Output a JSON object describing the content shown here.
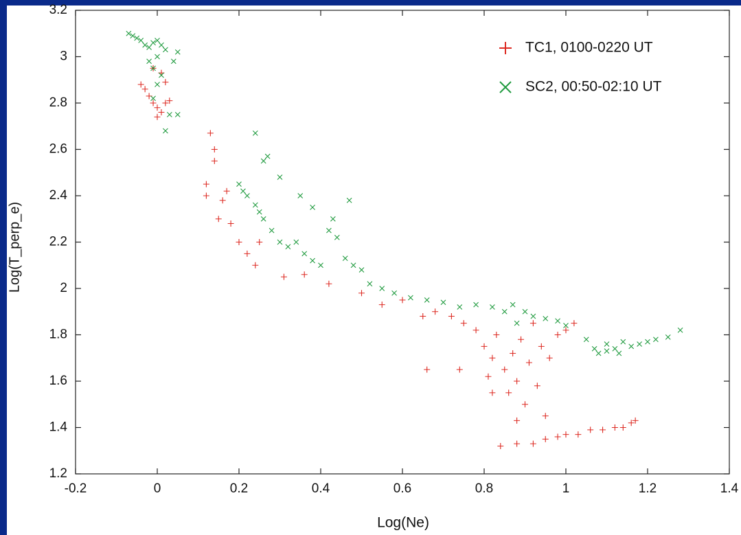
{
  "chart_data": {
    "type": "scatter",
    "xlabel": "Log(Ne)",
    "ylabel": "Log(T_perp_e)",
    "xlim": [
      -0.2,
      1.4
    ],
    "xticks": [
      -0.2,
      0,
      0.2,
      0.4,
      0.6,
      0.8,
      1,
      1.2,
      1.4
    ],
    "ylim": [
      1.2,
      3.2
    ],
    "yticks": [
      1.2,
      1.4,
      1.6,
      1.8,
      2,
      2.2,
      2.4,
      2.6,
      2.8,
      3,
      3.2
    ],
    "legend": "upper right",
    "series": [
      {
        "name": "TC1, 0100-0220 UT",
        "color": "#dd2a22",
        "marker": "plus",
        "x": [
          -0.04,
          -0.03,
          -0.02,
          -0.01,
          0,
          0.01,
          0,
          0.02,
          0.03,
          -0.01,
          0.01,
          0.02,
          0.12,
          0.13,
          0.14,
          0.14,
          0.12,
          0.16,
          0.15,
          0.17,
          0.18,
          0.2,
          0.22,
          0.24,
          0.25,
          0.31,
          0.36,
          0.42,
          0.5,
          0.55,
          0.6,
          0.65,
          0.68,
          0.72,
          0.75,
          0.78,
          0.8,
          0.81,
          0.82,
          0.83,
          0.85,
          0.86,
          0.87,
          0.88,
          0.89,
          0.9,
          0.91,
          0.92,
          0.93,
          0.94,
          0.95,
          0.96,
          0.98,
          1.0,
          1.02,
          0.84,
          0.88,
          0.92,
          0.95,
          0.98,
          1.0,
          1.03,
          1.06,
          1.09,
          1.12,
          1.14,
          1.16,
          1.17,
          0.66,
          0.74,
          0.82,
          0.88
        ],
        "y": [
          2.88,
          2.86,
          2.83,
          2.8,
          2.78,
          2.76,
          2.74,
          2.8,
          2.81,
          2.95,
          2.93,
          2.89,
          2.4,
          2.67,
          2.55,
          2.6,
          2.45,
          2.38,
          2.3,
          2.42,
          2.28,
          2.2,
          2.15,
          2.1,
          2.2,
          2.05,
          2.06,
          2.02,
          1.98,
          1.93,
          1.95,
          1.88,
          1.9,
          1.88,
          1.85,
          1.82,
          1.75,
          1.62,
          1.7,
          1.8,
          1.65,
          1.55,
          1.72,
          1.6,
          1.78,
          1.5,
          1.68,
          1.85,
          1.58,
          1.75,
          1.45,
          1.7,
          1.8,
          1.82,
          1.85,
          1.32,
          1.33,
          1.33,
          1.35,
          1.36,
          1.37,
          1.37,
          1.39,
          1.39,
          1.4,
          1.4,
          1.42,
          1.43,
          1.65,
          1.65,
          1.55,
          1.43
        ]
      },
      {
        "name": "SC2, 00:50-02:10 UT",
        "color": "#1f9a3e",
        "marker": "cross",
        "x": [
          -0.07,
          -0.06,
          -0.05,
          -0.04,
          -0.03,
          -0.02,
          -0.01,
          0,
          0.01,
          0.02,
          0,
          -0.02,
          -0.01,
          0.01,
          0.04,
          0.05,
          0,
          0.03,
          0.05,
          0.02,
          -0.01,
          0.2,
          0.21,
          0.22,
          0.24,
          0.25,
          0.26,
          0.24,
          0.26,
          0.27,
          0.3,
          0.28,
          0.3,
          0.32,
          0.34,
          0.36,
          0.38,
          0.4,
          0.42,
          0.44,
          0.46,
          0.48,
          0.5,
          0.47,
          0.52,
          0.55,
          0.58,
          0.62,
          0.66,
          0.7,
          0.74,
          0.78,
          0.82,
          0.85,
          0.87,
          0.9,
          0.92,
          0.95,
          0.98,
          1.0,
          0.88,
          1.05,
          1.07,
          1.08,
          1.1,
          1.12,
          1.14,
          1.16,
          1.18,
          1.2,
          1.22,
          1.25,
          1.28,
          1.1,
          1.13,
          0.35,
          0.38,
          0.43
        ],
        "y": [
          3.1,
          3.09,
          3.08,
          3.07,
          3.05,
          3.04,
          3.06,
          3.07,
          3.05,
          3.03,
          3.0,
          2.98,
          2.95,
          2.92,
          2.98,
          3.02,
          2.88,
          2.75,
          2.75,
          2.68,
          2.82,
          2.45,
          2.42,
          2.4,
          2.36,
          2.33,
          2.3,
          2.67,
          2.55,
          2.57,
          2.48,
          2.25,
          2.2,
          2.18,
          2.2,
          2.15,
          2.12,
          2.1,
          2.25,
          2.22,
          2.13,
          2.1,
          2.08,
          2.38,
          2.02,
          2.0,
          1.98,
          1.96,
          1.95,
          1.94,
          1.92,
          1.93,
          1.92,
          1.9,
          1.93,
          1.9,
          1.88,
          1.87,
          1.86,
          1.84,
          1.85,
          1.78,
          1.74,
          1.72,
          1.76,
          1.74,
          1.77,
          1.75,
          1.76,
          1.77,
          1.78,
          1.79,
          1.82,
          1.73,
          1.72,
          2.4,
          2.35,
          2.3
        ]
      }
    ]
  }
}
